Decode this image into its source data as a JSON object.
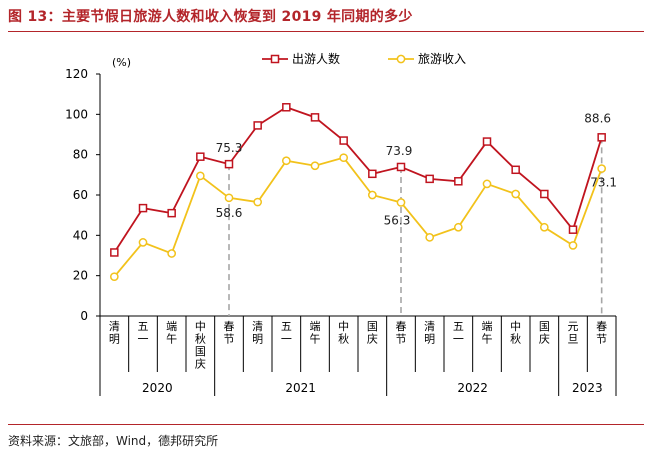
{
  "figure": {
    "title": "图 13：主要节假日旅游人数和收入恢复到 2019 年同期的多少",
    "source": "资料来源：文旅部，Wind，德邦研究所"
  },
  "chart_data": {
    "type": "line",
    "ylabel": "(%)",
    "ylim": [
      0,
      120
    ],
    "yticks": [
      0,
      20,
      40,
      60,
      80,
      100,
      120
    ],
    "grid": false,
    "legend": "top-center",
    "categories": [
      "清明",
      "五一",
      "端午",
      "中秋国庆",
      "春节",
      "清明",
      "五一",
      "端午",
      "中秋",
      "国庆",
      "春节",
      "清明",
      "五一",
      "端午",
      "中秋",
      "国庆",
      "元旦",
      "春节"
    ],
    "year_groups": [
      {
        "label": "2020",
        "count": 4
      },
      {
        "label": "2021",
        "count": 6
      },
      {
        "label": "2022",
        "count": 6
      },
      {
        "label": "2023",
        "count": 2
      }
    ],
    "series": [
      {
        "name": "出游人数",
        "color": "#c0141f",
        "values": [
          31.5,
          53.5,
          51,
          79,
          75.3,
          94.5,
          103.5,
          98.5,
          87,
          70.5,
          73.9,
          68,
          66.8,
          86.5,
          72.5,
          60.5,
          42.8,
          88.6
        ]
      },
      {
        "name": "旅游收入",
        "color": "#f2c21b",
        "values": [
          19.5,
          36.5,
          31,
          69.5,
          58.6,
          56.5,
          77,
          74.5,
          78.5,
          60,
          56.3,
          39,
          44,
          65.5,
          60.5,
          44,
          35,
          73.1
        ]
      }
    ],
    "annotations": [
      {
        "text": "75.3"
      },
      {
        "text": "58.6"
      },
      {
        "text": "73.9"
      },
      {
        "text": "56.3"
      },
      {
        "text": "88.6"
      },
      {
        "text": "73.1"
      }
    ]
  }
}
